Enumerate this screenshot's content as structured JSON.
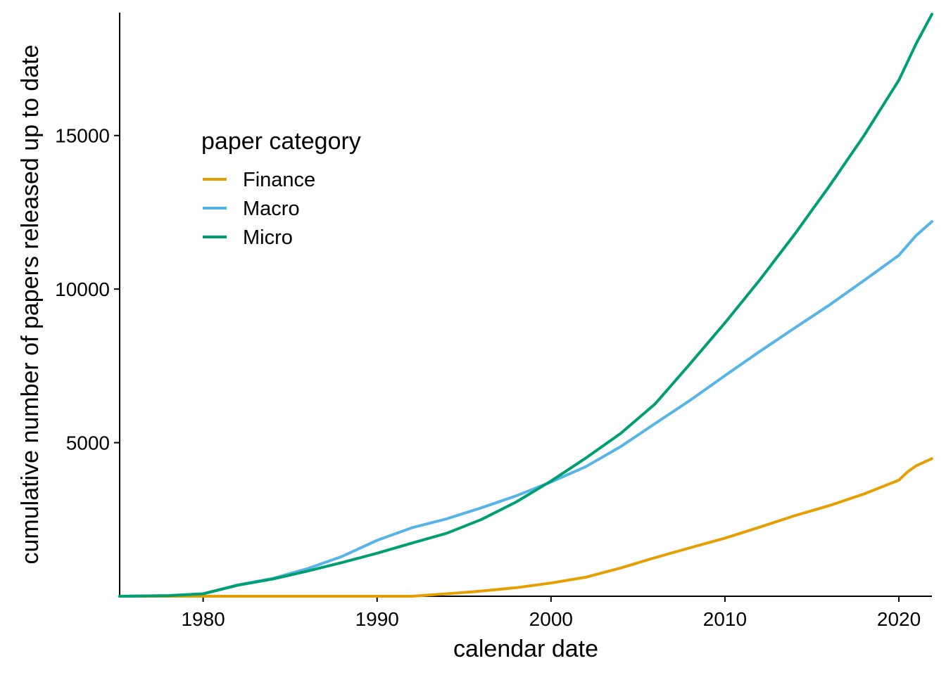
{
  "chart_data": {
    "type": "line",
    "xlabel": "calendar date",
    "ylabel": "cumulative number of papers released up to date",
    "xlim": [
      1975.2,
      2021.9
    ],
    "ylim": [
      0,
      19000
    ],
    "x_ticks": [
      1980,
      1990,
      2000,
      2010,
      2020
    ],
    "y_ticks": [
      5000,
      10000,
      15000
    ],
    "grid": false,
    "legend": {
      "title": "paper category",
      "position": "upper-left-inside"
    },
    "series": [
      {
        "name": "Finance",
        "color": "#E69F00",
        "x": [
          1975.2,
          1985,
          1990,
          1992,
          1994,
          1996,
          1998,
          2000,
          2002,
          2004,
          2006,
          2008,
          2010,
          2012,
          2014,
          2016,
          2018,
          2020,
          2020.5,
          2021,
          2021.9
        ],
        "y": [
          0,
          0,
          0,
          0,
          80,
          170,
          280,
          430,
          620,
          920,
          1260,
          1580,
          1890,
          2250,
          2620,
          2950,
          3330,
          3780,
          4050,
          4250,
          4480
        ]
      },
      {
        "name": "Macro",
        "color": "#56B4E9",
        "x": [
          1975.2,
          1978,
          1980,
          1982,
          1984,
          1986,
          1988,
          1990,
          1992,
          1994,
          1996,
          1998,
          2000,
          2002,
          2004,
          2006,
          2008,
          2010,
          2012,
          2014,
          2016,
          2018,
          2020,
          2021,
          2021.9
        ],
        "y": [
          0,
          20,
          80,
          370,
          580,
          900,
          1300,
          1820,
          2230,
          2520,
          2880,
          3270,
          3720,
          4220,
          4870,
          5630,
          6380,
          7180,
          7970,
          8730,
          9480,
          10280,
          11100,
          11750,
          12200
        ]
      },
      {
        "name": "Micro",
        "color": "#009E73",
        "x": [
          1975.2,
          1978,
          1980,
          1982,
          1984,
          1986,
          1988,
          1990,
          1992,
          1994,
          1996,
          1998,
          2000,
          2002,
          2004,
          2006,
          2008,
          2010,
          2012,
          2014,
          2016,
          2018,
          2020,
          2021,
          2021.9
        ],
        "y": [
          0,
          20,
          80,
          360,
          560,
          820,
          1100,
          1400,
          1730,
          2050,
          2500,
          3070,
          3750,
          4500,
          5300,
          6270,
          7570,
          8900,
          10300,
          11780,
          13350,
          15000,
          16800,
          18000,
          18950
        ]
      }
    ]
  }
}
